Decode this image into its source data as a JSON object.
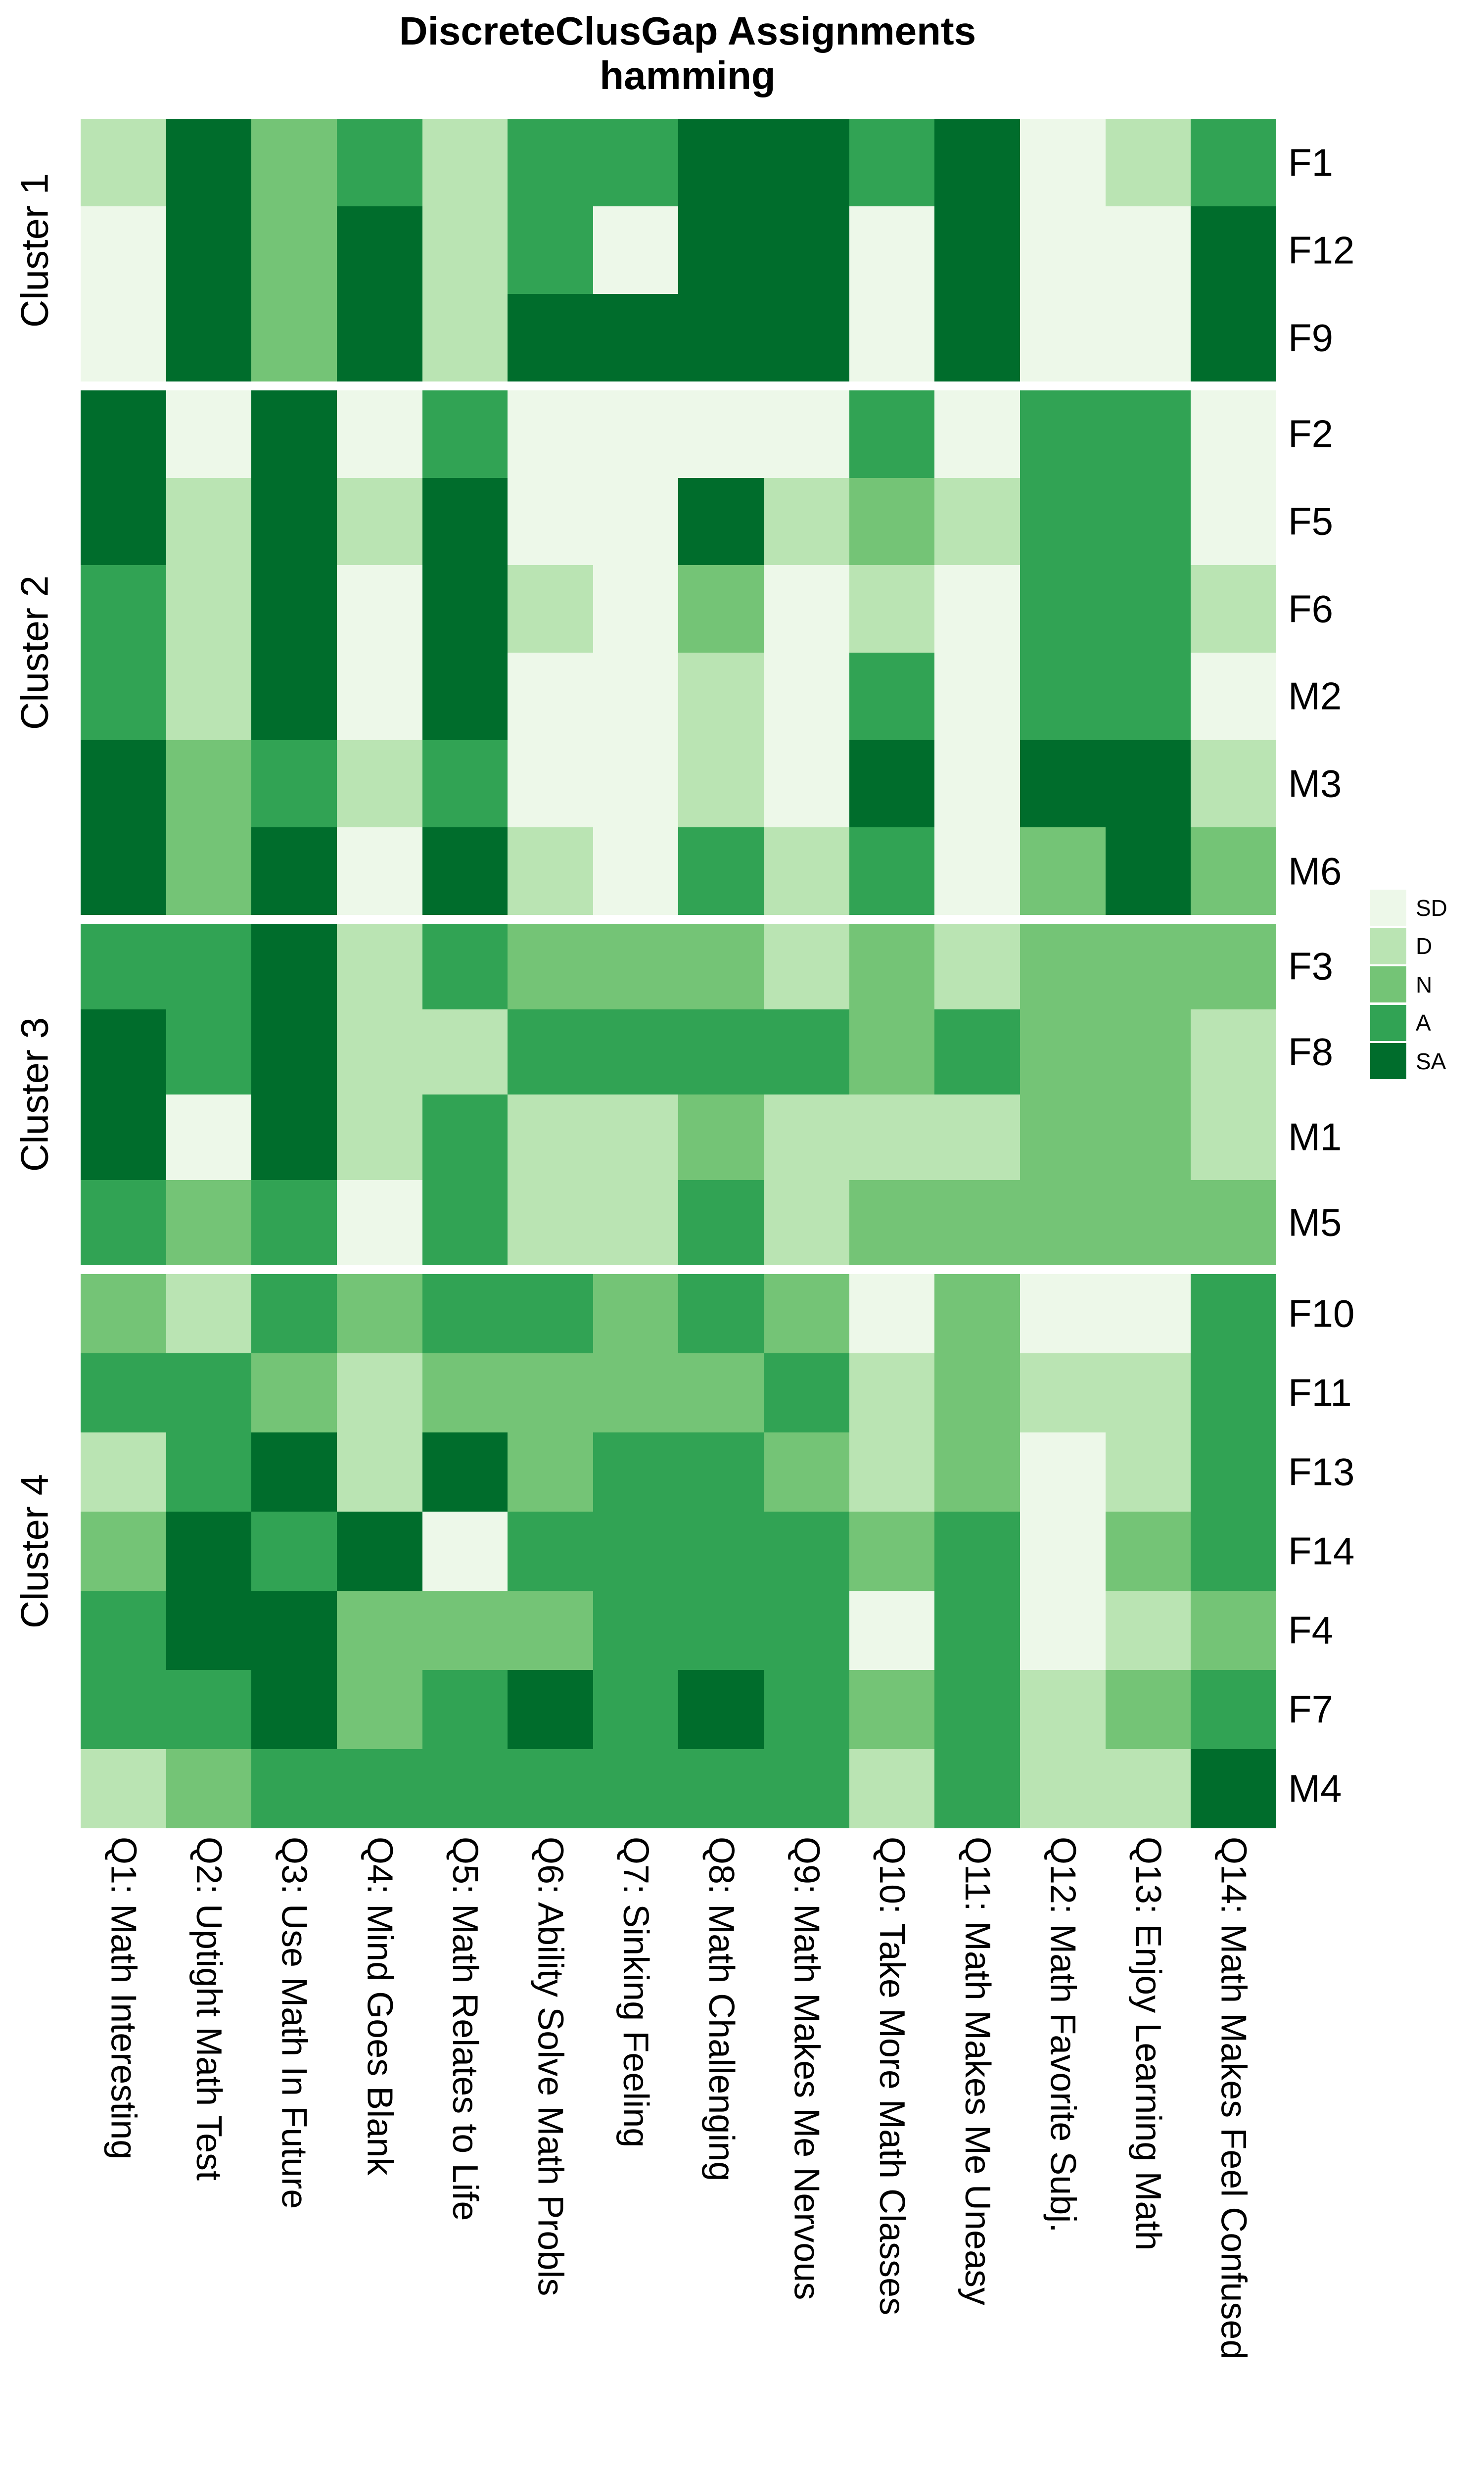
{
  "chart_data": {
    "type": "heatmap",
    "title": "DiscreteClusGap Assignments",
    "subtitle": "hamming",
    "columns": [
      "Q1: Math Interesting",
      "Q2: Uptight Math Test",
      "Q3: Use Math In Future",
      "Q4: Mind Goes Blank",
      "Q5: Math Relates to Life",
      "Q6: Ability Solve Math Probls",
      "Q7: Sinking Feeling",
      "Q8: Math Challenging",
      "Q9: Math Makes Me Nervous",
      "Q10: Take More Math Classes",
      "Q11: Math Makes Me Uneasy",
      "Q12: Math Favorite Subj.",
      "Q13: Enjoy Learning Math",
      "Q14: Math Makes Feel Confused"
    ],
    "value_levels": [
      "SD",
      "D",
      "N",
      "A",
      "SA"
    ],
    "level_colors": {
      "SD": "#EDF8E9",
      "D": "#BAE4B3",
      "N": "#74C476",
      "A": "#31A354",
      "SA": "#006D2C"
    },
    "legend": {
      "position": "right",
      "entries": [
        "SD",
        "D",
        "N",
        "A",
        "SA"
      ]
    },
    "clusters": [
      {
        "name": "Cluster 1",
        "rows": [
          {
            "label": "F1",
            "values": [
              "D",
              "SA",
              "N",
              "A",
              "D",
              "A",
              "A",
              "SA",
              "SA",
              "A",
              "SA",
              "SD",
              "D",
              "A"
            ]
          },
          {
            "label": "F12",
            "values": [
              "SD",
              "SA",
              "N",
              "SA",
              "D",
              "A",
              "SD",
              "SA",
              "SA",
              "SD",
              "SA",
              "SD",
              "SD",
              "SA"
            ]
          },
          {
            "label": "F9",
            "values": [
              "SD",
              "SA",
              "N",
              "SA",
              "D",
              "SA",
              "SA",
              "SA",
              "SA",
              "SD",
              "SA",
              "SD",
              "SD",
              "SA"
            ]
          }
        ]
      },
      {
        "name": "Cluster 2",
        "rows": [
          {
            "label": "F2",
            "values": [
              "SA",
              "SD",
              "SA",
              "SD",
              "A",
              "SD",
              "SD",
              "SD",
              "SD",
              "A",
              "SD",
              "A",
              "A",
              "SD"
            ]
          },
          {
            "label": "F5",
            "values": [
              "SA",
              "D",
              "SA",
              "D",
              "SA",
              "SD",
              "SD",
              "SA",
              "D",
              "N",
              "D",
              "A",
              "A",
              "SD"
            ]
          },
          {
            "label": "F6",
            "values": [
              "A",
              "D",
              "SA",
              "SD",
              "SA",
              "D",
              "SD",
              "N",
              "SD",
              "D",
              "SD",
              "A",
              "A",
              "D"
            ]
          },
          {
            "label": "M2",
            "values": [
              "A",
              "D",
              "SA",
              "SD",
              "SA",
              "SD",
              "SD",
              "D",
              "SD",
              "A",
              "SD",
              "A",
              "A",
              "SD"
            ]
          },
          {
            "label": "M3",
            "values": [
              "SA",
              "N",
              "A",
              "D",
              "A",
              "SD",
              "SD",
              "D",
              "SD",
              "SA",
              "SD",
              "SA",
              "SA",
              "D"
            ]
          },
          {
            "label": "M6",
            "values": [
              "SA",
              "N",
              "SA",
              "SD",
              "SA",
              "D",
              "SD",
              "A",
              "D",
              "A",
              "SD",
              "N",
              "SA",
              "N"
            ]
          }
        ]
      },
      {
        "name": "Cluster 3",
        "rows": [
          {
            "label": "F3",
            "values": [
              "A",
              "A",
              "SA",
              "D",
              "A",
              "N",
              "N",
              "N",
              "D",
              "N",
              "D",
              "N",
              "N",
              "N"
            ]
          },
          {
            "label": "F8",
            "values": [
              "SA",
              "A",
              "SA",
              "D",
              "D",
              "A",
              "A",
              "A",
              "A",
              "N",
              "A",
              "N",
              "N",
              "D"
            ]
          },
          {
            "label": "M1",
            "values": [
              "SA",
              "SD",
              "SA",
              "D",
              "A",
              "D",
              "D",
              "N",
              "D",
              "D",
              "D",
              "N",
              "N",
              "D"
            ]
          },
          {
            "label": "M5",
            "values": [
              "A",
              "N",
              "A",
              "SD",
              "A",
              "D",
              "D",
              "A",
              "D",
              "N",
              "N",
              "N",
              "N",
              "N"
            ]
          }
        ]
      },
      {
        "name": "Cluster 4",
        "rows": [
          {
            "label": "F10",
            "values": [
              "N",
              "D",
              "A",
              "N",
              "A",
              "A",
              "N",
              "A",
              "N",
              "SD",
              "N",
              "SD",
              "SD",
              "A"
            ]
          },
          {
            "label": "F11",
            "values": [
              "A",
              "A",
              "N",
              "D",
              "N",
              "N",
              "N",
              "N",
              "A",
              "D",
              "N",
              "D",
              "D",
              "A"
            ]
          },
          {
            "label": "F13",
            "values": [
              "D",
              "A",
              "SA",
              "D",
              "SA",
              "N",
              "A",
              "A",
              "N",
              "D",
              "N",
              "SD",
              "D",
              "A"
            ]
          },
          {
            "label": "F14",
            "values": [
              "N",
              "SA",
              "A",
              "SA",
              "SD",
              "A",
              "A",
              "A",
              "A",
              "N",
              "A",
              "SD",
              "N",
              "A"
            ]
          },
          {
            "label": "F4",
            "values": [
              "A",
              "SA",
              "SA",
              "N",
              "N",
              "N",
              "A",
              "A",
              "A",
              "SD",
              "A",
              "SD",
              "D",
              "N"
            ]
          },
          {
            "label": "F7",
            "values": [
              "A",
              "A",
              "SA",
              "N",
              "A",
              "SA",
              "A",
              "SA",
              "A",
              "N",
              "A",
              "D",
              "N",
              "A"
            ]
          },
          {
            "label": "M4",
            "values": [
              "D",
              "N",
              "A",
              "A",
              "A",
              "A",
              "A",
              "A",
              "A",
              "D",
              "A",
              "D",
              "D",
              "SA"
            ]
          }
        ]
      }
    ]
  }
}
